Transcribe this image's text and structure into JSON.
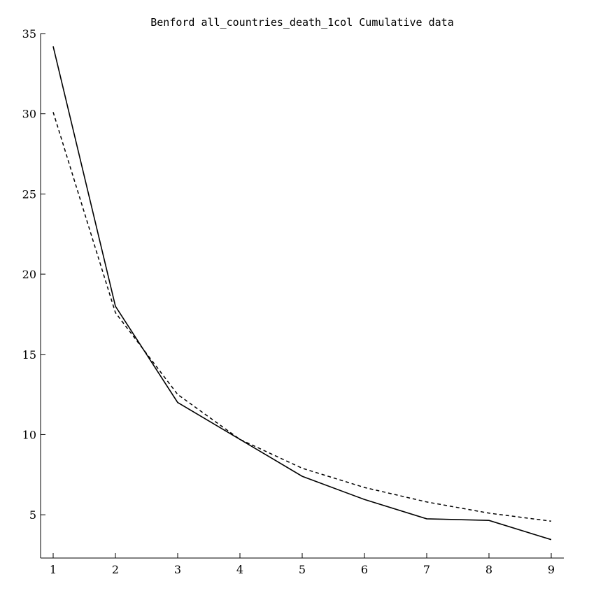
{
  "chart_data": {
    "type": "line",
    "title": "Benford all_countries_death_1col Cumulative data",
    "xlabel": "",
    "ylabel": "",
    "x": [
      1,
      2,
      3,
      4,
      5,
      6,
      7,
      8,
      9
    ],
    "xticks": [
      "1",
      "2",
      "3",
      "4",
      "5",
      "6",
      "7",
      "8",
      "9"
    ],
    "yticks": [
      "5",
      "10",
      "15",
      "20",
      "25",
      "30",
      "35"
    ],
    "xlim": [
      1,
      9
    ],
    "ylim": [
      3,
      35
    ],
    "grid": false,
    "series": [
      {
        "style": "solid",
        "color": "#000000",
        "values": [
          34.2,
          18.0,
          12.0,
          9.7,
          7.4,
          5.95,
          4.75,
          4.65,
          3.45
        ]
      },
      {
        "style": "dashed",
        "color": "#000000",
        "values": [
          30.1,
          17.6,
          12.5,
          9.7,
          7.9,
          6.7,
          5.8,
          5.1,
          4.6
        ]
      }
    ]
  }
}
